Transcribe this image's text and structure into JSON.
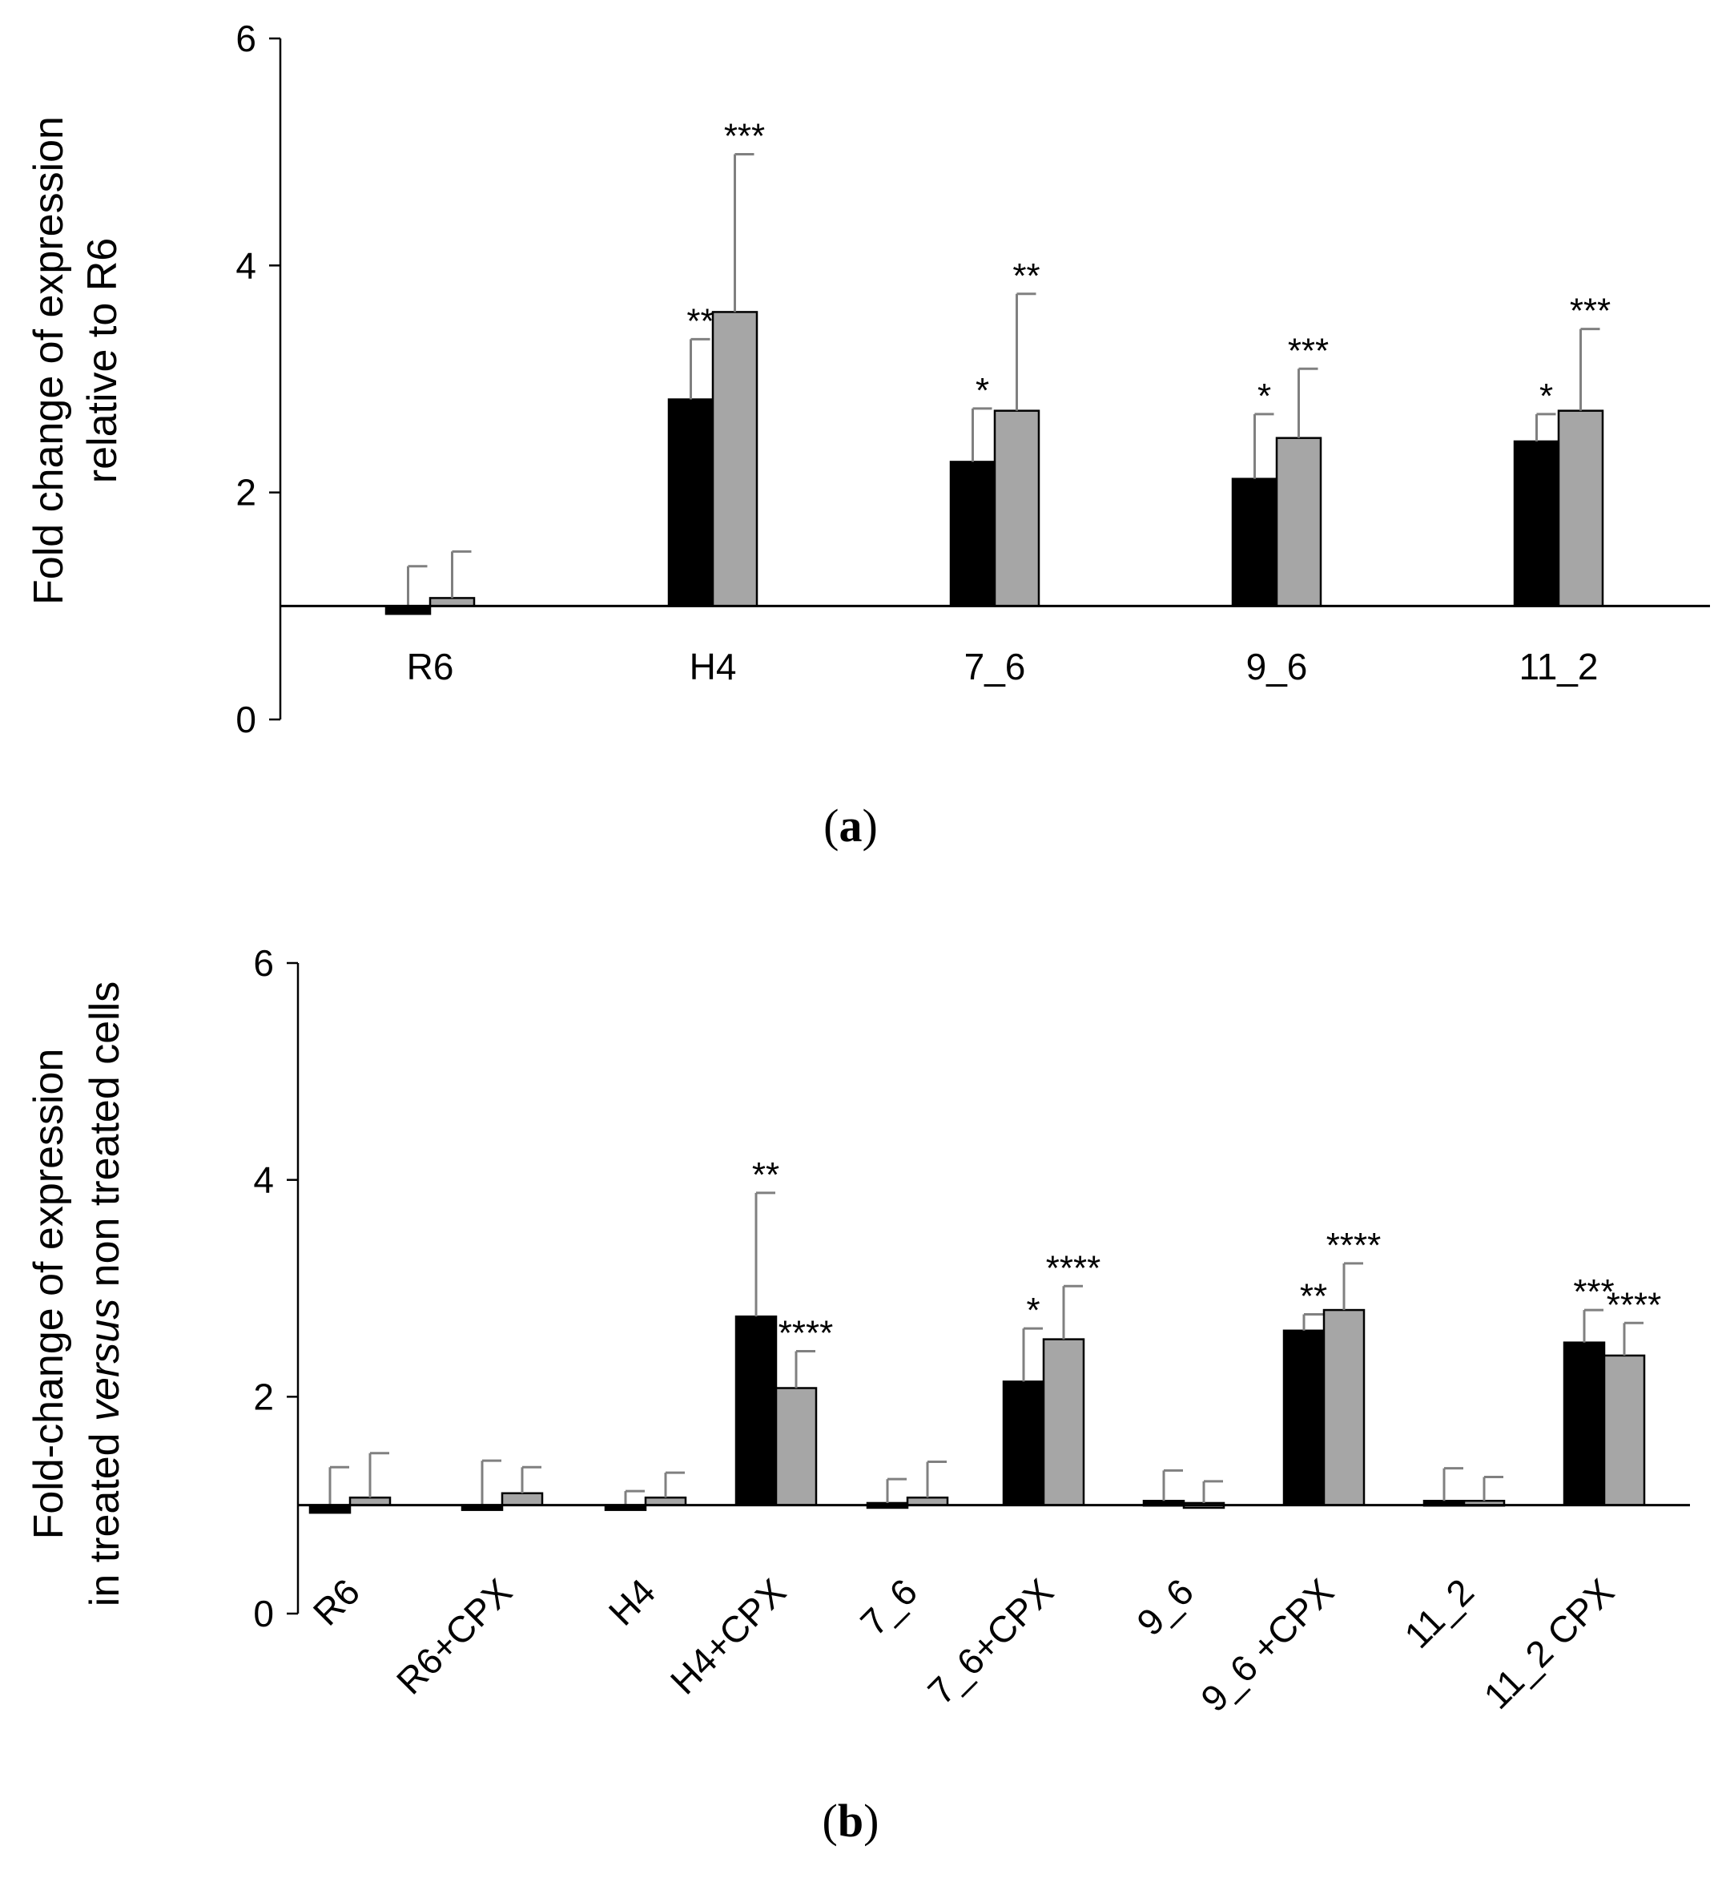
{
  "chart_data": [
    {
      "type": "bar",
      "panel_label": "a",
      "ylabel_lines": [
        "Fold change of expression",
        "relative to R6"
      ],
      "ylim": [
        0,
        6
      ],
      "yticks": [
        "0",
        "2",
        "4",
        "6"
      ],
      "baseline": 1,
      "categories": [
        "R6",
        "H4",
        "7_6",
        "9_6",
        "11_2"
      ],
      "series": [
        {
          "name": "series 1 (black)",
          "color": "#000000",
          "values": [
            0.93,
            2.82,
            2.27,
            2.12,
            2.45
          ],
          "errors": [
            0.42,
            0.53,
            0.47,
            0.57,
            0.24
          ],
          "sig": [
            "",
            "**",
            "*",
            "*",
            "*"
          ]
        },
        {
          "name": "series 2 (grey)",
          "color": "#a6a6a6",
          "values": [
            1.07,
            3.59,
            2.72,
            2.48,
            2.72
          ],
          "errors": [
            0.41,
            1.39,
            1.03,
            0.61,
            0.72
          ],
          "sig": [
            "",
            "***",
            "**",
            "***",
            "***"
          ]
        }
      ]
    },
    {
      "type": "bar",
      "panel_label": "b",
      "ylabel_line1": "Fold-change of expression",
      "ylabel_line2_prefix": "in treated ",
      "ylabel_line2_italic": "versus",
      "ylabel_line2_suffix": " non treated cells",
      "ylim": [
        0,
        6
      ],
      "yticks": [
        "0",
        "2",
        "4",
        "6"
      ],
      "baseline": 1,
      "categories": [
        "R6",
        "R6+CPX",
        "H4",
        "H4+CPX",
        "7_6",
        "7_6+CPX",
        "9_6",
        "9_6 +CPX",
        "11_2",
        "11_2 CPX"
      ],
      "series": [
        {
          "name": "series 1 (black)",
          "color": "#000000",
          "values": [
            0.93,
            0.98,
            0.98,
            2.74,
            1.02,
            2.14,
            1.04,
            2.61,
            1.04,
            2.5
          ],
          "errors": [
            0.42,
            0.43,
            0.15,
            1.14,
            0.22,
            0.49,
            0.28,
            0.15,
            0.3,
            0.3
          ],
          "sig": [
            "",
            "",
            "",
            "**",
            "",
            "*",
            "",
            "**",
            "",
            "***"
          ]
        },
        {
          "name": "series 2 (grey)",
          "color": "#a6a6a6",
          "values": [
            1.07,
            1.11,
            1.07,
            2.08,
            1.07,
            2.53,
            1.02,
            2.8,
            1.04,
            2.38
          ],
          "errors": [
            0.41,
            0.24,
            0.23,
            0.34,
            0.33,
            0.49,
            0.2,
            0.43,
            0.22,
            0.3
          ],
          "sig": [
            "",
            "",
            "",
            "****",
            "",
            "****",
            "",
            "****",
            "",
            "****"
          ]
        }
      ]
    }
  ]
}
